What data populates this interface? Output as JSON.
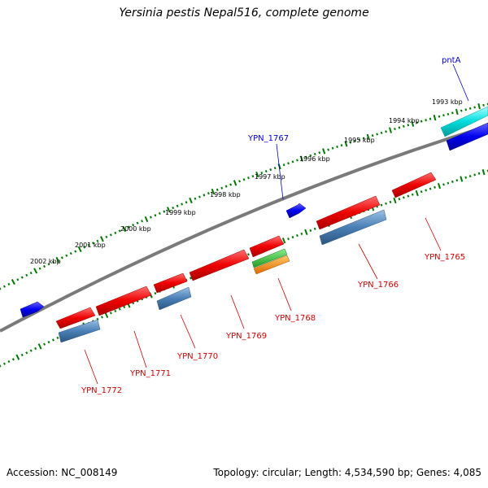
{
  "title": "Yersinia pestis Nepal516, complete genome",
  "footer": {
    "accession": "Accession: NC_008149",
    "summary": "Topology: circular; Length: 4,534,590 bp; Genes: 4,085"
  },
  "colors": {
    "forward_gene": "#ff0000",
    "reverse_gene": "#0000ee",
    "cds_steelblue": "#4a7fb5",
    "rna_green": "#33bb33",
    "rna_orange": "#ff8800",
    "highlight_cyan": "#00dddd",
    "tick_green": "#007700",
    "backbone": "#808080"
  },
  "scale_labels": [
    "1993 kbp",
    "1994 kbp",
    "1995 kbp",
    "1996 kbp",
    "1997 kbp",
    "1998 kbp",
    "1999 kbp",
    "2000 kbp",
    "2001 kbp",
    "2002 kbp"
  ],
  "genes_red": [
    "YPN_1765",
    "YPN_1766",
    "YPN_1768",
    "YPN_1769",
    "YPN_1770",
    "YPN_1771",
    "YPN_1772"
  ],
  "genes_blue": [
    "pntA",
    "YPN_1767"
  ]
}
